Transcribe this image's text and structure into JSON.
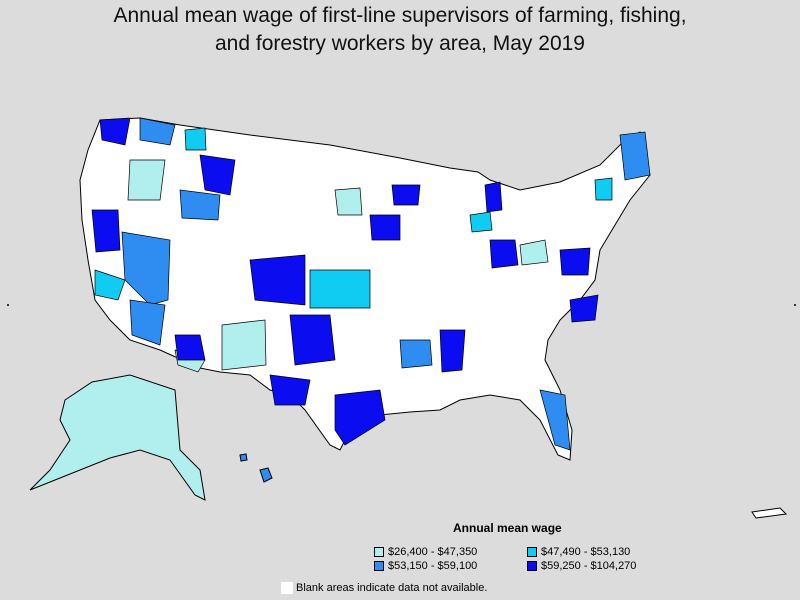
{
  "title_line1": "Annual mean wage of first-line supervisors of farming, fishing,",
  "title_line2": "and forestry workers by area, May 2019",
  "legend": {
    "title": "Annual mean wage",
    "items": [
      {
        "label": "$26,400 - $47,350",
        "color": "#b0efee"
      },
      {
        "label": "$47,490 - $53,130",
        "color": "#11ccf2"
      },
      {
        "label": "$53,150 - $59,100",
        "color": "#2f8cf0"
      },
      {
        "label": "$59,250 - $104,270",
        "color": "#0b0cf0"
      }
    ]
  },
  "note": "Blank areas indicate data not available.",
  "colors": {
    "background": "#dcdcdc",
    "blank": "#ffffff",
    "border": "#000000"
  }
}
